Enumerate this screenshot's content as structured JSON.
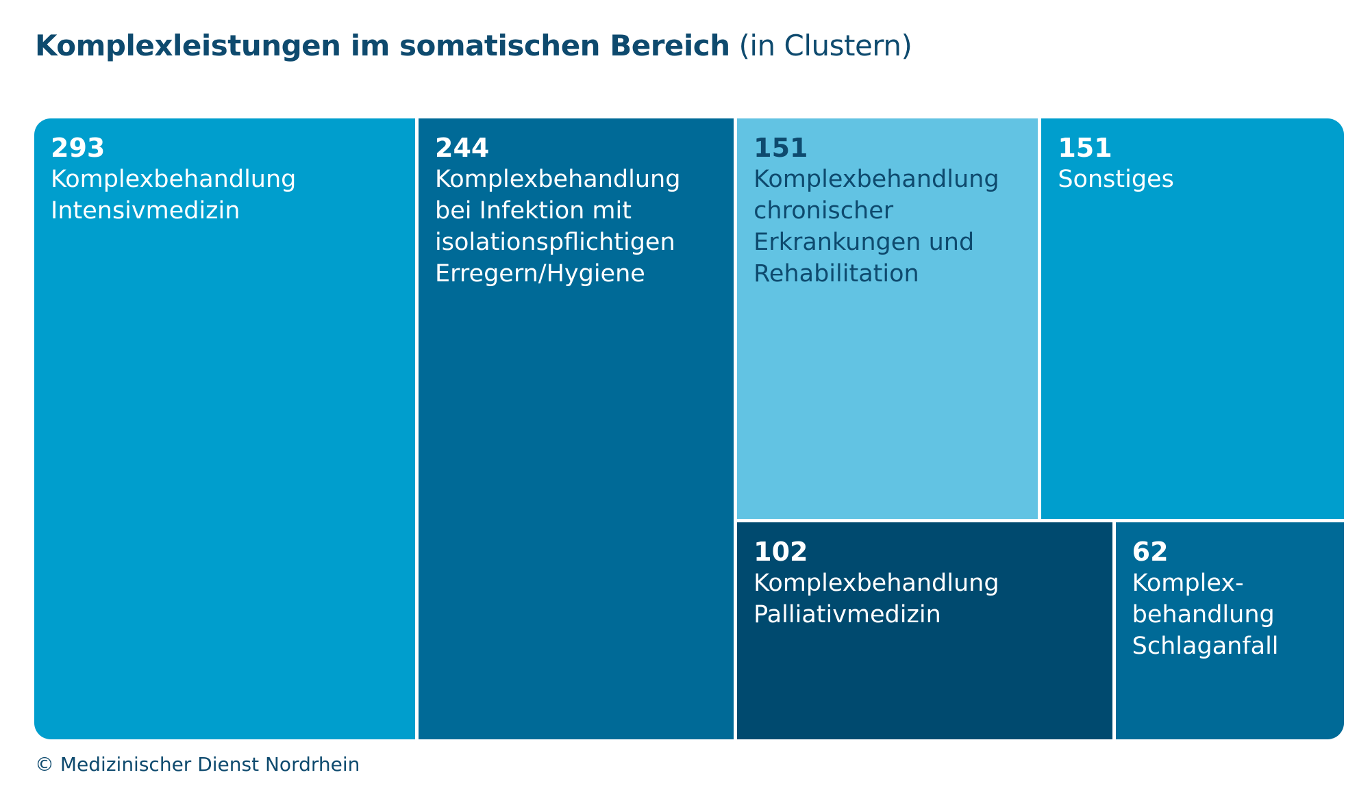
{
  "title": {
    "bold": "Komplexleistungen im somatischen Bereich",
    "light": "(in Clustern)"
  },
  "footer": "© Medizinischer Dienst Nordrhein",
  "chart_data": {
    "type": "treemap",
    "title": "Komplexleistungen im somatischen Bereich (in Clustern)",
    "items": [
      {
        "value": 293,
        "value_label": "293",
        "label": "Komplexbehandlung\nIntensivmedizin",
        "color": "#009ecd",
        "text_color": "#ffffff"
      },
      {
        "value": 244,
        "value_label": "244",
        "label": "Komplexbehandlung\nbei Infektion mit\nisolationspflichtigen\nErregern/Hygiene",
        "color": "#006a97",
        "text_color": "#ffffff"
      },
      {
        "value": 151,
        "value_label": "151",
        "label": "Komplexbehandlung\nchronischer\nErkrankungen und\nRehabilitation",
        "color": "#62c3e3",
        "text_color": "#0e4a6e"
      },
      {
        "value": 151,
        "value_label": "151",
        "label": "Sonstiges",
        "color": "#009ecd",
        "text_color": "#ffffff"
      },
      {
        "value": 102,
        "value_label": "102",
        "label": "Komplexbehandlung\nPalliativmedizin",
        "color": "#004a6f",
        "text_color": "#ffffff"
      },
      {
        "value": 62,
        "value_label": "62",
        "label": "Komplex-\nbehandlung\nSchlaganfall",
        "color": "#006a97",
        "text_color": "#ffffff"
      }
    ]
  }
}
